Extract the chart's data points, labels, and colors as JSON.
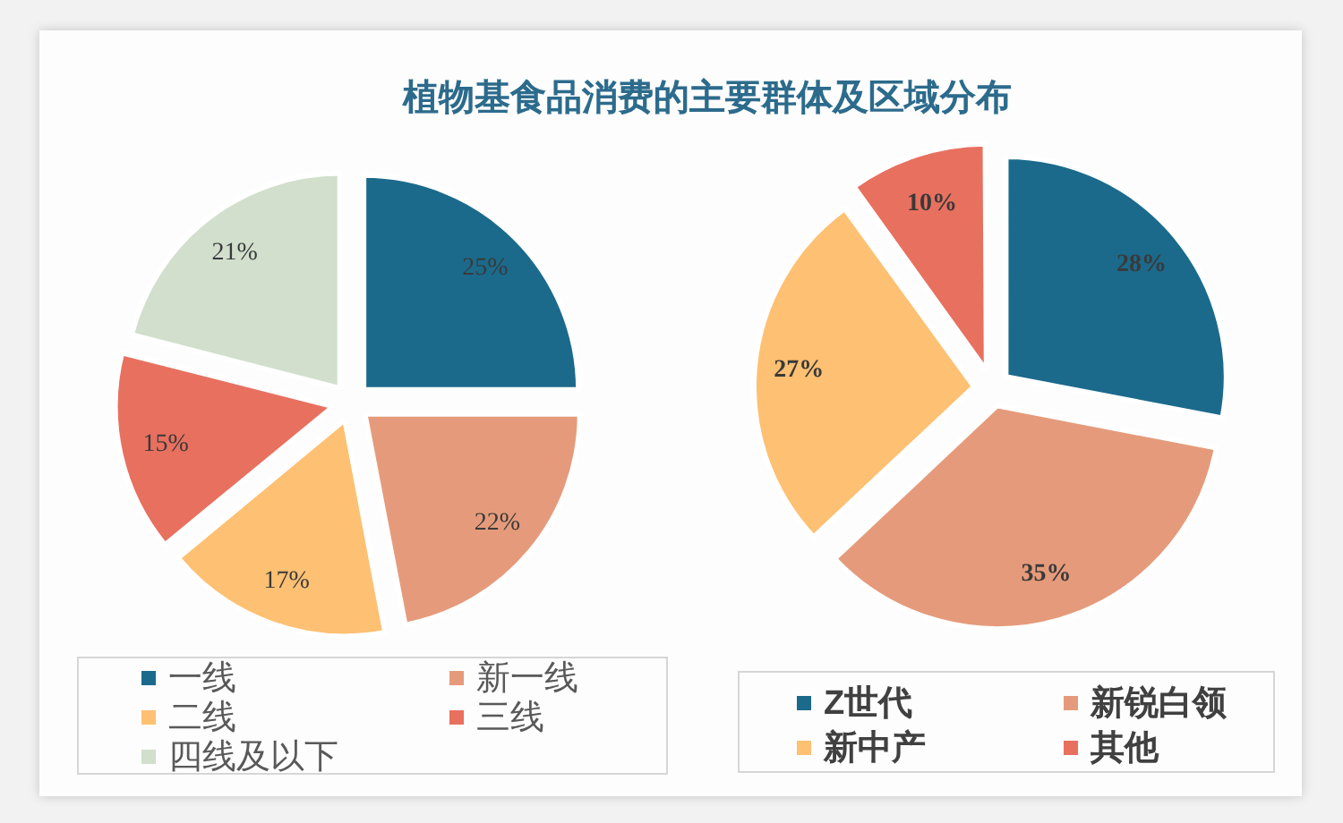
{
  "chart_data": [
    {
      "type": "pie",
      "title": "植物基食品消费的主要群体及区域分布",
      "categories": [
        "一线",
        "新一线",
        "二线",
        "三线",
        "四线及以下"
      ],
      "values": [
        25,
        22,
        17,
        15,
        21
      ],
      "colors": [
        "#1b6a8c",
        "#e59b7b",
        "#fec072",
        "#e8705f",
        "#d1dfcc"
      ],
      "value_labels": [
        "25%",
        "22%",
        "17%",
        "15%",
        "21%"
      ],
      "legend": "bottom"
    },
    {
      "type": "pie",
      "categories": [
        "Z世代",
        "新锐白领",
        "新中产",
        "其他"
      ],
      "values": [
        28,
        35,
        27,
        10
      ],
      "colors": [
        "#1b6a8c",
        "#e59b7b",
        "#fec072",
        "#e8705f"
      ],
      "value_labels": [
        "28%",
        "35%",
        "27%",
        "10%"
      ],
      "legend": "bottom"
    }
  ]
}
